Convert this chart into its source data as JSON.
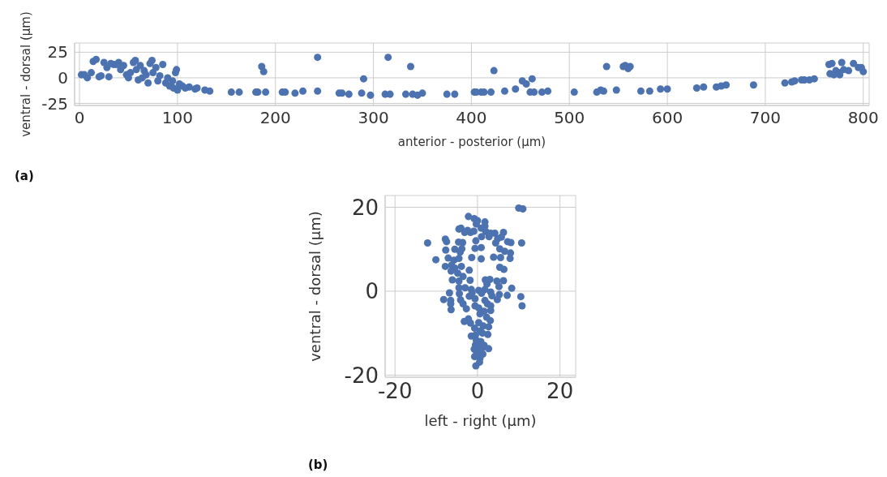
{
  "chart_data": [
    {
      "type": "scatter",
      "xlabel": "anterior - posterior (µm)",
      "ylabel": "ventral - dorsal (µm)",
      "annotations": [
        "(a)"
      ],
      "xlim": [
        -5,
        806
      ],
      "ylim": [
        -27,
        34
      ],
      "xticks": [
        0,
        100,
        200,
        300,
        400,
        500,
        600,
        700,
        800
      ],
      "yticks": [
        -25,
        0,
        25
      ],
      "grid": true,
      "marker": "circle",
      "series": [
        {
          "color": "#4c72b0",
          "x": [
            2,
            5,
            8,
            12,
            14,
            17,
            20,
            22,
            25,
            28,
            30,
            32,
            35,
            38,
            40,
            42,
            45,
            48,
            50,
            52,
            55,
            57,
            58,
            60,
            62,
            64,
            66,
            68,
            70,
            72,
            74,
            75,
            78,
            80,
            82,
            85,
            88,
            90,
            92,
            95,
            96,
            98,
            99,
            100,
            102,
            105,
            108,
            112,
            118,
            120,
            128,
            133,
            155,
            163,
            180,
            182,
            186,
            188,
            190,
            207,
            210,
            220,
            228,
            243,
            243,
            265,
            268,
            275,
            288,
            290,
            297,
            312,
            315,
            317,
            338,
            333,
            340,
            345,
            350,
            375,
            383,
            403,
            405,
            410,
            413,
            420,
            423,
            434,
            445,
            452,
            456,
            460,
            462,
            464,
            472,
            478,
            505,
            528,
            532,
            538,
            535,
            548,
            555,
            557,
            560,
            562,
            573,
            582,
            593,
            600,
            630,
            637,
            650,
            655,
            660,
            688,
            720,
            727,
            730,
            737,
            740,
            745,
            750,
            765,
            768,
            772,
            775,
            778,
            780,
            785,
            790,
            795,
            798,
            800,
            766,
            770,
            776
          ],
          "values": [
            3,
            3,
            0,
            5,
            16,
            18,
            1,
            2,
            15,
            10,
            1,
            14,
            13,
            13,
            15,
            8,
            12,
            3,
            0,
            5,
            15,
            17,
            8,
            -2,
            12,
            0,
            7,
            3,
            -5,
            14,
            17,
            5,
            10,
            -3,
            2,
            13,
            -5,
            0,
            -8,
            -3,
            -10,
            5,
            8,
            -12,
            -6,
            -8,
            -10,
            -9,
            -11,
            -10,
            -12,
            -13,
            -14,
            -14,
            -14,
            -14,
            11,
            6,
            -14,
            -14,
            -14,
            -15,
            -13,
            20,
            -13,
            -15,
            -15,
            -16,
            -15,
            -1,
            -17,
            -16,
            20,
            -16,
            11,
            -16,
            -16,
            -17,
            -15,
            -16,
            -16,
            -14,
            -14,
            -14,
            -14,
            -14,
            7,
            -13,
            -11,
            -3,
            -6,
            -14,
            -1,
            -14,
            -14,
            -13,
            -14,
            -14,
            -12,
            11,
            -13,
            -12,
            11,
            12,
            9,
            11,
            -13,
            -13,
            -11,
            -11,
            -10,
            -9,
            -9,
            -8,
            -7,
            -7,
            -5,
            -4,
            -3,
            -2,
            -2,
            -2,
            -1,
            13,
            14,
            7,
            5,
            15,
            8,
            7,
            14,
            10,
            10,
            6,
            4,
            3,
            3
          ]
        }
      ]
    },
    {
      "type": "scatter",
      "xlabel": "left - right (µm)",
      "ylabel": "ventral - dorsal (µm)",
      "annotations": [
        "(b)"
      ],
      "xlim": [
        -22.4,
        23.8
      ],
      "ylim": [
        -20.5,
        22.8
      ],
      "xticks": [
        -20,
        0,
        20
      ],
      "yticks": [
        -20,
        0,
        20
      ],
      "grid": true,
      "marker": "circle",
      "series": [
        {
          "color": "#4c72b0",
          "x": [
            10,
            11,
            -2.2,
            -0.8,
            0,
            -0.3,
            1.8,
            1.8,
            -4.5,
            -4,
            -1.7,
            -2.4,
            -3.1,
            -0.9,
            0.9,
            2,
            3.2,
            4.2,
            6.3,
            1,
            2.8,
            4.9,
            5.8,
            7.3,
            8.1,
            10.7,
            -12.1,
            -7.8,
            -7.5,
            -4.6,
            -3.6,
            -0.4,
            4.4,
            -7.7,
            -5.5,
            -4.2,
            -3.8,
            -0.6,
            0.9,
            5.4,
            6.6,
            8,
            -10.1,
            -7.1,
            -5.7,
            -4.5,
            -1.4,
            0.9,
            3.9,
            5.6,
            7.9,
            -7.8,
            -6.3,
            -5.5,
            -3.9,
            -2,
            5.4,
            6.4,
            -6.4,
            -4.8,
            -3.5,
            -6.1,
            -4.5,
            -1.8,
            1.9,
            3,
            4.7,
            6.3,
            2.3,
            5.2,
            8.3,
            -4.5,
            -3,
            -1.5,
            0.3,
            1.8,
            3.2,
            -6.8,
            -4.4,
            -2,
            -1.3,
            1,
            3.5,
            5.3,
            7.2,
            10.5,
            -8.2,
            -6.5,
            -4.1,
            -0.6,
            1.8,
            4.8,
            -6.5,
            -3.5,
            -0.6,
            2.4,
            3.2,
            10.8,
            -6.4,
            -2.7,
            0.3,
            1.6,
            3.2,
            -2.2,
            0.6,
            2.2,
            3.1,
            -3.2,
            -1.7,
            0.3,
            1.4,
            2.7,
            -0.7,
            0.6,
            -1.5,
            -0.5,
            1.2,
            2.5,
            -0.3,
            0.8,
            -0.5,
            0.5,
            1.6,
            -0.8,
            0.1,
            1.2,
            2.7,
            -0.2,
            1.3,
            -0.7,
            0.6,
            -0.4,
            0.5
          ],
          "values": [
            19.8,
            19.6,
            17.8,
            17.3,
            16.8,
            16,
            16.5,
            15.5,
            14.8,
            15,
            14,
            14.5,
            14,
            14.3,
            15,
            14.2,
            13.8,
            13.8,
            14,
            13,
            13,
            12.5,
            12.9,
            11.8,
            11.6,
            11.5,
            11.5,
            12.4,
            11.8,
            11.7,
            11.6,
            12,
            11.5,
            9.8,
            10,
            9.3,
            10.1,
            10.2,
            10.4,
            10.1,
            9.5,
            9.1,
            7.5,
            7.9,
            7.4,
            7.8,
            8,
            7.7,
            8.1,
            8,
            7.8,
            5.9,
            6.2,
            5.5,
            5.9,
            5,
            5.7,
            5.2,
            4.8,
            4.3,
            3.5,
            2.7,
            2.4,
            2.6,
            2.7,
            2.8,
            2.4,
            2.5,
            1.7,
            1.1,
            0.7,
            0.8,
            0.8,
            0.4,
            0.2,
            0.4,
            -0.2,
            -0.4,
            -0.6,
            -1.2,
            -0.4,
            -0.5,
            -1.1,
            -0.8,
            -1,
            -1.3,
            -2,
            -2.2,
            -2.1,
            -1.8,
            -2.2,
            -2,
            -3,
            -3,
            -3.5,
            -3,
            -3.5,
            -3.5,
            -4.4,
            -4.2,
            -4,
            -4.8,
            -4.6,
            -6.6,
            -5.4,
            -6.2,
            -7,
            -7.2,
            -7.6,
            -7.5,
            -8.3,
            -8.5,
            -8.8,
            -9.5,
            -10.7,
            -10.5,
            -10,
            -10.3,
            -11.7,
            -12,
            -12.8,
            -13,
            -12.9,
            -13.8,
            -14,
            -13.5,
            -13.7,
            -14.7,
            -15,
            -15.6,
            -16,
            -17.8,
            -16.9
          ]
        }
      ]
    }
  ]
}
